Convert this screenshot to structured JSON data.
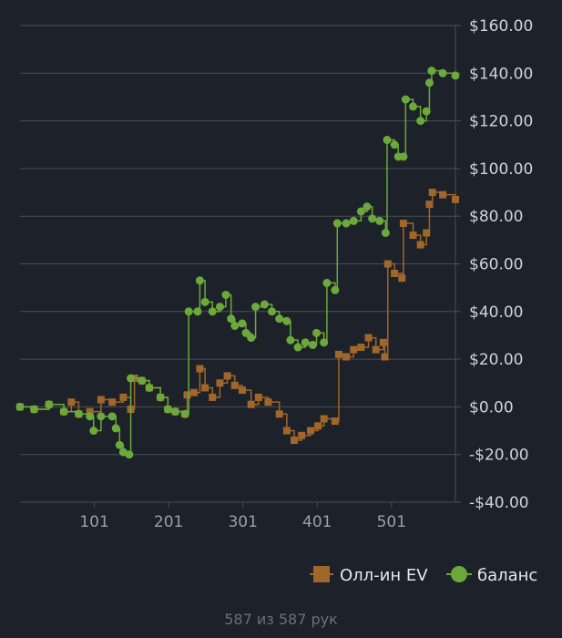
{
  "chart_data": {
    "type": "line",
    "x_ticks": [
      "101",
      "201",
      "301",
      "401",
      "501"
    ],
    "x_tick_values": [
      101,
      201,
      301,
      401,
      501
    ],
    "xlim": [
      1,
      587
    ],
    "ylim": [
      -40,
      160
    ],
    "y_ticks": [
      -40,
      -20,
      0,
      20,
      40,
      60,
      80,
      100,
      120,
      140,
      160
    ],
    "y_tick_labels": [
      "-$40.00",
      "-$20.00",
      "$0.00",
      "$20.00",
      "$40.00",
      "$60.00",
      "$80.00",
      "$100.00",
      "$120.00",
      "$140.00",
      "$160.00"
    ],
    "grid": true,
    "legend_position": "bottom-right",
    "colors": {
      "background": "#1d2129",
      "grid": "#4a4f57",
      "allin": "#a0662a",
      "balance": "#6aa93a"
    },
    "series": [
      {
        "name": "Олл-ин EV",
        "marker": "square",
        "points": [
          [
            1,
            0
          ],
          [
            20,
            -1
          ],
          [
            40,
            1
          ],
          [
            60,
            -2
          ],
          [
            70,
            2
          ],
          [
            80,
            -3
          ],
          [
            95,
            -2
          ],
          [
            110,
            3
          ],
          [
            125,
            2
          ],
          [
            140,
            4
          ],
          [
            150,
            -1
          ],
          [
            155,
            12
          ],
          [
            165,
            11
          ],
          [
            175,
            8
          ],
          [
            190,
            4
          ],
          [
            200,
            -1
          ],
          [
            210,
            -2
          ],
          [
            223,
            -3
          ],
          [
            226,
            5
          ],
          [
            235,
            6
          ],
          [
            243,
            16
          ],
          [
            250,
            8
          ],
          [
            260,
            4
          ],
          [
            270,
            10
          ],
          [
            280,
            13
          ],
          [
            290,
            9
          ],
          [
            300,
            7
          ],
          [
            312,
            1
          ],
          [
            322,
            4
          ],
          [
            335,
            2
          ],
          [
            350,
            -3
          ],
          [
            360,
            -10
          ],
          [
            370,
            -14
          ],
          [
            380,
            -12
          ],
          [
            392,
            -10
          ],
          [
            402,
            -8
          ],
          [
            410,
            -5
          ],
          [
            425,
            -6
          ],
          [
            430,
            22
          ],
          [
            440,
            21
          ],
          [
            450,
            24
          ],
          [
            460,
            25
          ],
          [
            470,
            29
          ],
          [
            480,
            24
          ],
          [
            490,
            27
          ],
          [
            492,
            21
          ],
          [
            496,
            60
          ],
          [
            505,
            56
          ],
          [
            515,
            54
          ],
          [
            517,
            77
          ],
          [
            530,
            72
          ],
          [
            540,
            68
          ],
          [
            548,
            73
          ],
          [
            552,
            85
          ],
          [
            556,
            90
          ],
          [
            570,
            89
          ],
          [
            587,
            87
          ]
        ]
      },
      {
        "name": "баланс",
        "marker": "circle",
        "points": [
          [
            1,
            0
          ],
          [
            20,
            -1
          ],
          [
            40,
            1
          ],
          [
            60,
            -2
          ],
          [
            80,
            -3
          ],
          [
            95,
            -4
          ],
          [
            100,
            -10
          ],
          [
            110,
            -4
          ],
          [
            125,
            -4
          ],
          [
            130,
            -9
          ],
          [
            135,
            -16
          ],
          [
            140,
            -19
          ],
          [
            148,
            -20
          ],
          [
            150,
            12
          ],
          [
            165,
            11
          ],
          [
            175,
            8
          ],
          [
            190,
            4
          ],
          [
            200,
            -1
          ],
          [
            210,
            -2
          ],
          [
            223,
            -3
          ],
          [
            228,
            40
          ],
          [
            240,
            40
          ],
          [
            243,
            53
          ],
          [
            250,
            44
          ],
          [
            260,
            40
          ],
          [
            270,
            42
          ],
          [
            278,
            47
          ],
          [
            285,
            37
          ],
          [
            290,
            34
          ],
          [
            300,
            35
          ],
          [
            305,
            31
          ],
          [
            312,
            29
          ],
          [
            318,
            42
          ],
          [
            330,
            43
          ],
          [
            340,
            40
          ],
          [
            350,
            37
          ],
          [
            360,
            36
          ],
          [
            365,
            28
          ],
          [
            375,
            25
          ],
          [
            385,
            27
          ],
          [
            395,
            26
          ],
          [
            400,
            31
          ],
          [
            410,
            27
          ],
          [
            414,
            52
          ],
          [
            425,
            49
          ],
          [
            428,
            77
          ],
          [
            440,
            77
          ],
          [
            450,
            78
          ],
          [
            460,
            82
          ],
          [
            468,
            84
          ],
          [
            475,
            79
          ],
          [
            485,
            78
          ],
          [
            493,
            73
          ],
          [
            495,
            112
          ],
          [
            505,
            110
          ],
          [
            510,
            105
          ],
          [
            517,
            105
          ],
          [
            520,
            129
          ],
          [
            530,
            126
          ],
          [
            540,
            120
          ],
          [
            548,
            124
          ],
          [
            552,
            136
          ],
          [
            555,
            141
          ],
          [
            570,
            140
          ],
          [
            587,
            139
          ]
        ]
      }
    ]
  },
  "footer": {
    "text": "587 из 587 рук"
  }
}
